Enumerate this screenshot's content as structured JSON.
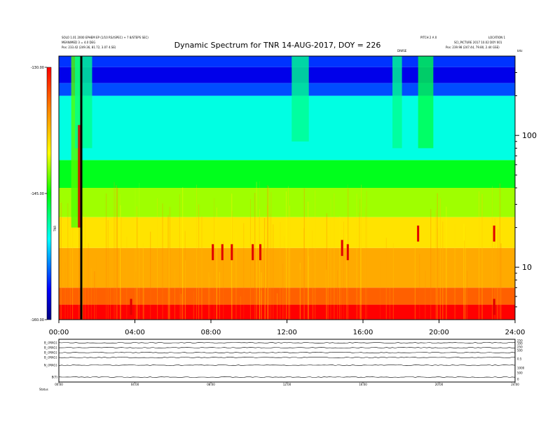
{
  "header": {
    "left_line1": "SOLO 1.01 2000 EPHEM EP (1/10 RS/(SPEC) + 7 8/STEPS SEC)",
    "left_line2": "MEAN/MED 3 = 4.0 DEG",
    "left_line3": "Pos:    233.42 (249.36, 81.72, 3.07 4.SE)",
    "right_top1": "PITCH 2 A 0",
    "right_top2": "LOCATION 1",
    "right_line2": "SCI_PICTURE 2017 10.02 DOY 001",
    "right_line3": "Pos:   239.98 (247.44, 79.80, 2.44 GSE)",
    "marker_label": "DIWSE",
    "right_axis_unit": "kHz"
  },
  "chart_data": {
    "type": "heatmap",
    "title": "Dynamic Spectrum for TNR 14-AUG-2017, DOY = 226",
    "x": {
      "min": 0,
      "max": 24,
      "ticks": [
        "00:00",
        "04:00",
        "08:00",
        "12:00",
        "16:00",
        "20:00",
        "24:00"
      ]
    },
    "y": {
      "scale": "log",
      "min": 4,
      "max": 400,
      "ticks": [
        10,
        100
      ],
      "tick_labels": [
        "10",
        "100"
      ]
    },
    "colorbar": {
      "min": -160,
      "max": -130,
      "ticks": [
        "-130.00",
        "-145.00",
        "-160.00"
      ],
      "label": "TNR"
    },
    "data_gap_hour": 1.18,
    "bands": [
      {
        "y_from_kHz": 4,
        "y_to_kHz": 5.2,
        "level": 0.0
      },
      {
        "y_from_kHz": 5.2,
        "y_to_kHz": 7.0,
        "level": 0.12
      },
      {
        "y_from_kHz": 7.0,
        "y_to_kHz": 14.0,
        "level": 0.22
      },
      {
        "y_from_kHz": 14.0,
        "y_to_kHz": 24.0,
        "level": 0.3
      },
      {
        "y_from_kHz": 24.0,
        "y_to_kHz": 40.0,
        "level": 0.4
      },
      {
        "y_from_kHz": 40.0,
        "y_to_kHz": 65.0,
        "level": 0.52
      },
      {
        "y_from_kHz": 65.0,
        "y_to_kHz": 200.0,
        "level": 0.66
      },
      {
        "y_from_kHz": 200.0,
        "y_to_kHz": 250.0,
        "level": 0.82
      },
      {
        "y_from_kHz": 250.0,
        "y_to_kHz": 330.0,
        "level": 0.9
      },
      {
        "y_from_kHz": 330.0,
        "y_to_kHz": 400.0,
        "level": 0.84
      }
    ],
    "bursts": [
      {
        "hour": 0.9,
        "width": 0.5,
        "y_from_kHz": 20,
        "y_to_kHz": 400,
        "level": 0.45
      },
      {
        "hour": 1.3,
        "width": 0.9,
        "y_from_kHz": 80,
        "y_to_kHz": 400,
        "level": 0.6
      },
      {
        "hour": 12.7,
        "width": 0.9,
        "y_from_kHz": 90,
        "y_to_kHz": 400,
        "level": 0.6
      },
      {
        "hour": 17.8,
        "width": 0.5,
        "y_from_kHz": 80,
        "y_to_kHz": 400,
        "level": 0.6
      },
      {
        "hour": 19.3,
        "width": 0.8,
        "y_from_kHz": 80,
        "y_to_kHz": 400,
        "level": 0.55
      }
    ],
    "spots": [
      {
        "hour": 8.1,
        "kHz": 13
      },
      {
        "hour": 8.6,
        "kHz": 13
      },
      {
        "hour": 9.1,
        "kHz": 13
      },
      {
        "hour": 10.2,
        "kHz": 13
      },
      {
        "hour": 10.6,
        "kHz": 13
      },
      {
        "hour": 14.9,
        "kHz": 14
      },
      {
        "hour": 15.2,
        "kHz": 13
      },
      {
        "hour": 18.9,
        "kHz": 18
      },
      {
        "hour": 22.9,
        "kHz": 18
      },
      {
        "hour": 3.8,
        "kHz": 5
      },
      {
        "hour": 22.9,
        "kHz": 5
      }
    ]
  },
  "lower_panel": {
    "row_labels": [
      "B_{MAG}",
      "B_{MAG}",
      "B_{MAG}",
      "B_{MAG}",
      "N_{MAG}",
      "B(T)"
    ],
    "right_labels": [
      "250",
      "100",
      "250",
      "500",
      "0.5",
      "1000",
      "500",
      "0"
    ],
    "x_ticks": [
      "00:00",
      "04:00",
      "08:00",
      "12:00",
      "16:00",
      "20:00",
      "24:00"
    ],
    "footer_label": "Status"
  }
}
